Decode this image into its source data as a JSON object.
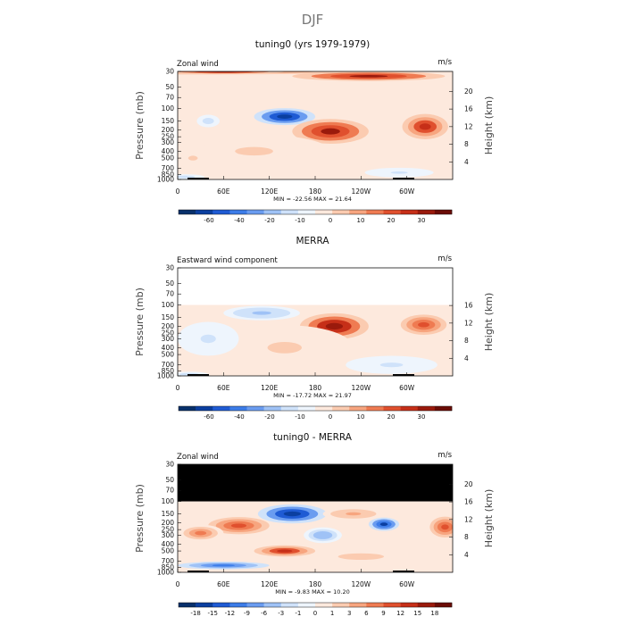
{
  "chart_data": {
    "type": "heatmap",
    "title": "DJF",
    "panels": [
      {
        "title": "tuning0 (yrs 1979-1979)",
        "left_label": "Zonal wind",
        "units": "m/s",
        "ylabel": "Pressure (mb)",
        "y2label": "Height (km)",
        "x_ticks": [
          "0",
          "60E",
          "120E",
          "180",
          "120W",
          "60W"
        ],
        "p_ticks": [
          "30",
          "50",
          "70",
          "100",
          "150",
          "200",
          "250",
          "300",
          "400",
          "500",
          "700",
          "850",
          "1000"
        ],
        "z_ticks": [
          "4",
          "8",
          "12",
          "16",
          "20"
        ],
        "min_max": "MIN = -22.56   MAX =  21.64",
        "colorbar_ticks": [
          "-60",
          "-40",
          "-20",
          "-10",
          "0",
          "10",
          "20",
          "30"
        ],
        "p_top_data": 30,
        "masked_above": null,
        "features": [
          {
            "lon": 0,
            "p": 30,
            "lon_w": 360,
            "p_w": 18,
            "value": 12
          },
          {
            "lon": 60,
            "p": 30,
            "lon_w": 80,
            "p_w": 10,
            "value": 22
          },
          {
            "lon": 250,
            "p": 35,
            "lon_w": 100,
            "p_w": 12,
            "value": 20
          },
          {
            "lon": 140,
            "p": 130,
            "lon_w": 40,
            "p_w": 70,
            "value": -22
          },
          {
            "lon": 200,
            "p": 210,
            "lon_w": 50,
            "p_w": 160,
            "value": 21
          },
          {
            "lon": 324,
            "p": 180,
            "lon_w": 30,
            "p_w": 140,
            "value": 18
          },
          {
            "lon": 100,
            "p": 400,
            "lon_w": 100,
            "p_w": 400,
            "value": 4
          },
          {
            "lon": 20,
            "p": 500,
            "lon_w": 25,
            "p_w": 300,
            "value": 4
          },
          {
            "lon": 40,
            "p": 150,
            "lon_w": 15,
            "p_w": 60,
            "value": -5
          },
          {
            "lon": 290,
            "p": 800,
            "lon_w": 45,
            "p_w": 250,
            "value": -4
          },
          {
            "lon": 10,
            "p": 920,
            "lon_w": 25,
            "p_w": 120,
            "value": -6
          }
        ]
      },
      {
        "title": "MERRA",
        "left_label": "Eastward wind component",
        "units": "m/s",
        "ylabel": "Pressure (mb)",
        "y2label": "Height (km)",
        "x_ticks": [
          "0",
          "60E",
          "120E",
          "180",
          "120W",
          "60W"
        ],
        "p_ticks": [
          "30",
          "50",
          "70",
          "100",
          "150",
          "200",
          "250",
          "300",
          "400",
          "500",
          "700",
          "850",
          "1000"
        ],
        "z_ticks": [
          "4",
          "8",
          "12",
          "16"
        ],
        "min_max": "MIN = -17.72   MAX =  21.97",
        "colorbar_ticks": [
          "-60",
          "-40",
          "-20",
          "-10",
          "0",
          "10",
          "20",
          "30"
        ],
        "p_top_data": 100,
        "masked_above": null,
        "features": [
          {
            "lon": 110,
            "p": 130,
            "lon_w": 50,
            "p_w": 60,
            "value": -8
          },
          {
            "lon": 205,
            "p": 200,
            "lon_w": 45,
            "p_w": 160,
            "value": 22
          },
          {
            "lon": 322,
            "p": 190,
            "lon_w": 30,
            "p_w": 120,
            "value": 14
          },
          {
            "lon": 140,
            "p": 400,
            "lon_w": 90,
            "p_w": 500,
            "value": 4
          },
          {
            "lon": 40,
            "p": 300,
            "lon_w": 40,
            "p_w": 300,
            "value": -4
          },
          {
            "lon": 280,
            "p": 700,
            "lon_w": 60,
            "p_w": 400,
            "value": -4
          },
          {
            "lon": 15,
            "p": 950,
            "lon_w": 25,
            "p_w": 100,
            "value": -5
          }
        ]
      },
      {
        "title": "tuning0 - MERRA",
        "left_label": "Zonal wind",
        "units": "m/s",
        "ylabel": "Pressure (mb)",
        "y2label": "Height (km)",
        "x_ticks": [
          "0",
          "60E",
          "120E",
          "180",
          "120W",
          "60W"
        ],
        "p_ticks": [
          "30",
          "50",
          "70",
          "100",
          "150",
          "200",
          "250",
          "300",
          "400",
          "500",
          "700",
          "850",
          "1000"
        ],
        "z_ticks": [
          "4",
          "8",
          "12",
          "16",
          "20"
        ],
        "min_max": "MIN =  -9.83   MAX =  10.20",
        "colorbar_ticks": [
          "-18",
          "-15",
          "-12",
          "-9",
          "-6",
          "-3",
          "-1",
          "0",
          "1",
          "3",
          "6",
          "9",
          "12",
          "15",
          "18"
        ],
        "p_top_data": 100,
        "masked_above": 100,
        "features": [
          {
            "lon": 150,
            "p": 150,
            "lon_w": 45,
            "p_w": 90,
            "value": -10
          },
          {
            "lon": 270,
            "p": 210,
            "lon_w": 20,
            "p_w": 90,
            "value": -9
          },
          {
            "lon": 80,
            "p": 220,
            "lon_w": 40,
            "p_w": 120,
            "value": 7
          },
          {
            "lon": 30,
            "p": 280,
            "lon_w": 30,
            "p_w": 150,
            "value": 5
          },
          {
            "lon": 140,
            "p": 500,
            "lon_w": 40,
            "p_w": 180,
            "value": 8
          },
          {
            "lon": 190,
            "p": 300,
            "lon_w": 25,
            "p_w": 150,
            "value": -4
          },
          {
            "lon": 350,
            "p": 230,
            "lon_w": 20,
            "p_w": 150,
            "value": 7
          },
          {
            "lon": 60,
            "p": 800,
            "lon_w": 60,
            "p_w": 200,
            "value": -6
          },
          {
            "lon": 240,
            "p": 600,
            "lon_w": 60,
            "p_w": 250,
            "value": 2
          },
          {
            "lon": 230,
            "p": 150,
            "lon_w": 40,
            "p_w": 60,
            "value": 3
          }
        ]
      }
    ]
  },
  "colors": {
    "scale": [
      "#08306b",
      "#0b3fa0",
      "#1f5bd4",
      "#3c7ce8",
      "#6a9cf0",
      "#9fc2f6",
      "#cfe2fa",
      "#eef5fd",
      "#fde9dd",
      "#fbcbb0",
      "#f7a57f",
      "#ef7b52",
      "#e0502e",
      "#c62f18",
      "#9a1a0c",
      "#6b0c06"
    ],
    "mask": "#000000",
    "axis": "#111111"
  }
}
